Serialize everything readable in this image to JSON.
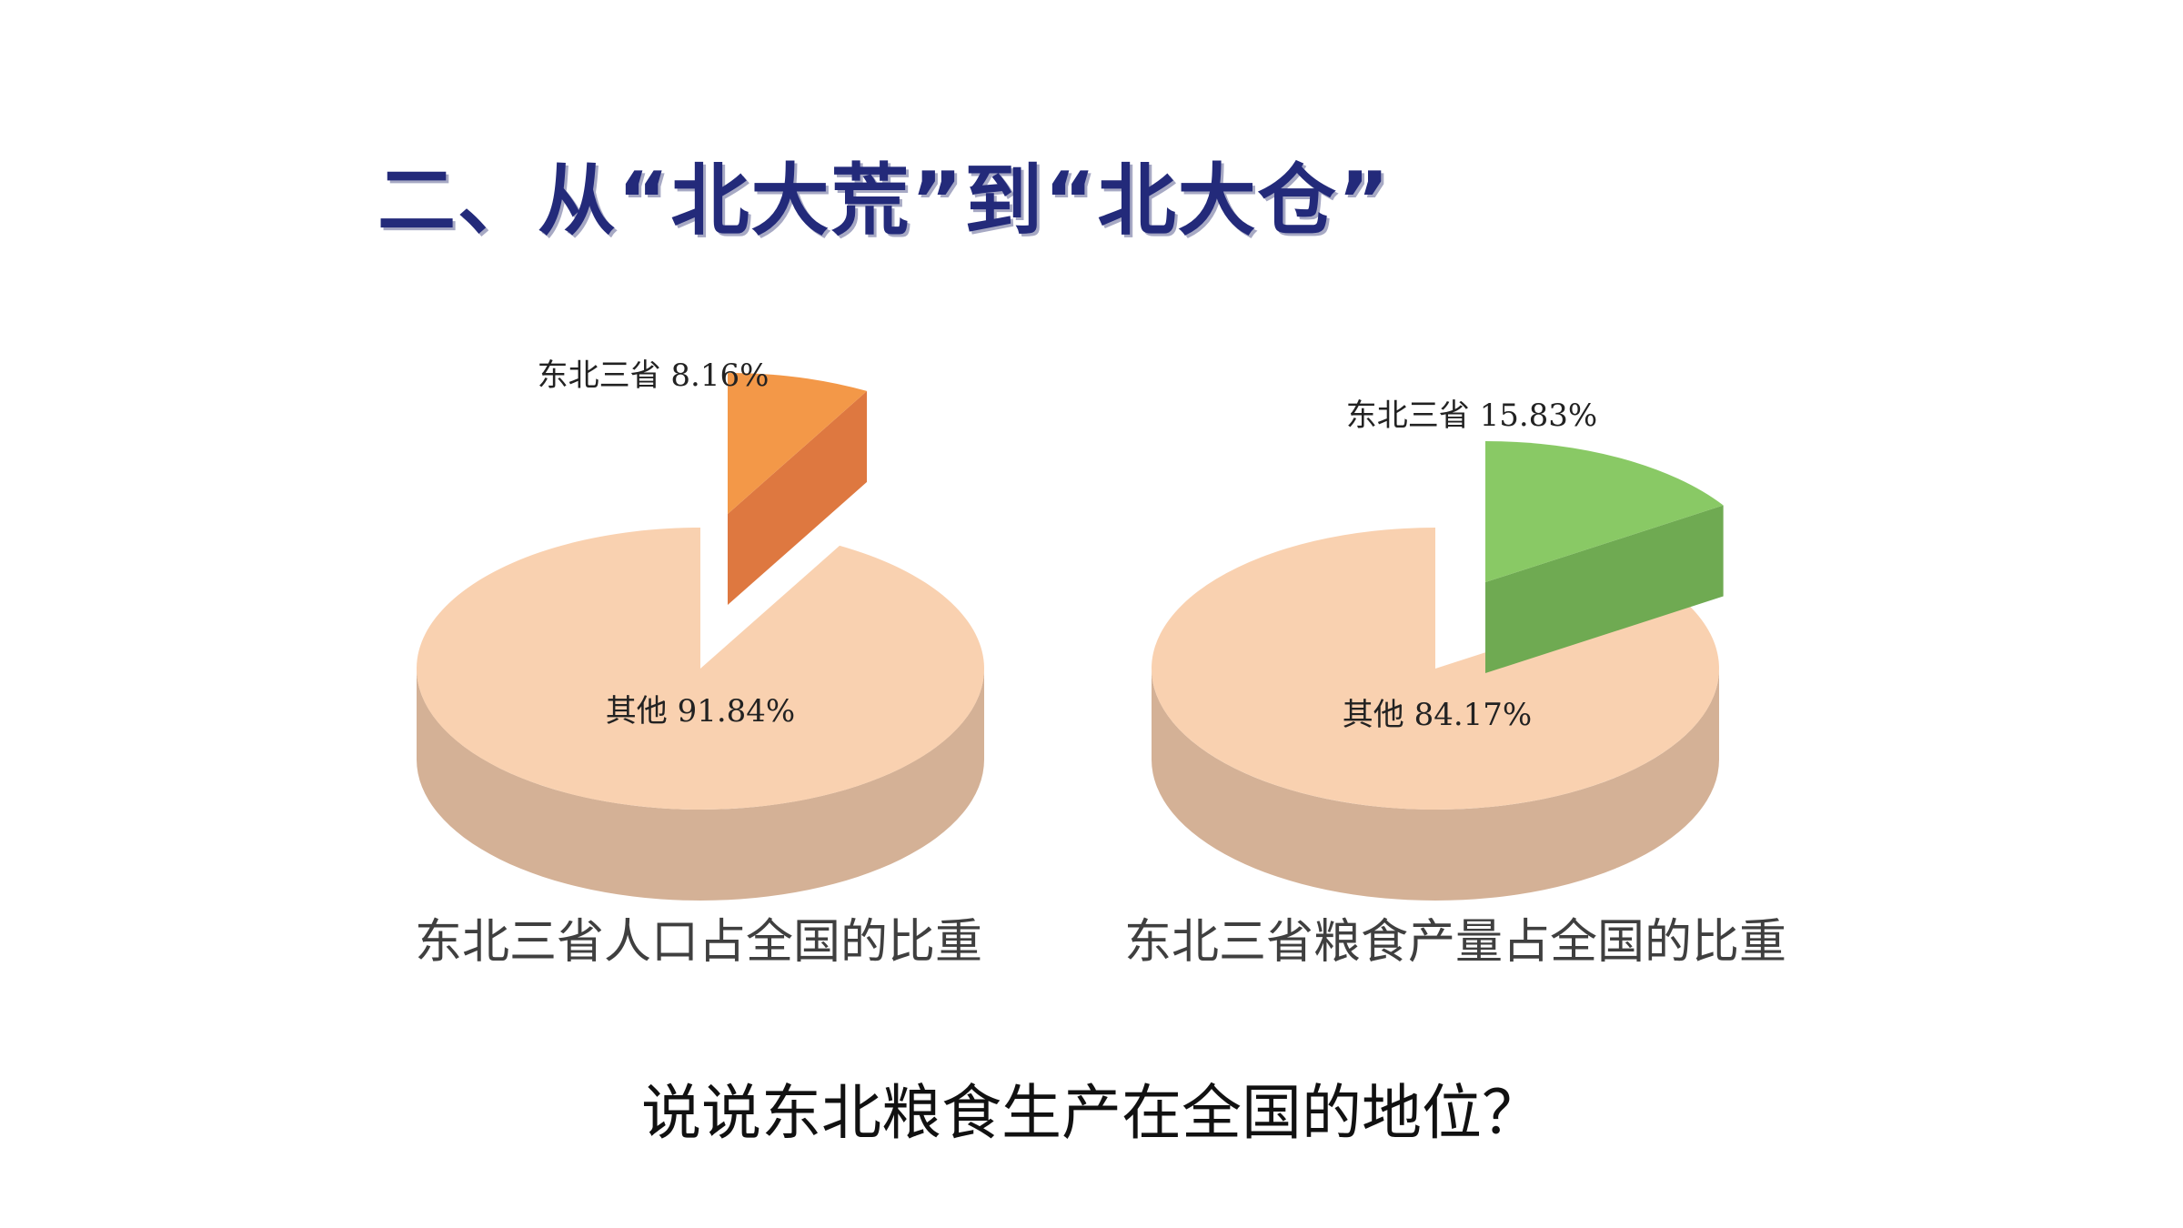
{
  "title": "二、从“北大荒”到“北大仓”",
  "question": "说说东北粮食生产在全国的地位？",
  "chart_data": [
    {
      "type": "pie",
      "title": "东北三省人口占全国的比重",
      "slices": [
        {
          "label": "东北三省",
          "value": 8.16,
          "value_text": "8.16%",
          "exploded": true,
          "color": "#f39848",
          "side_color": "#de7840"
        },
        {
          "label": "其他",
          "value": 91.84,
          "value_text": "91.84%",
          "exploded": false,
          "color": "#f9d1b0",
          "side_color": "#d4b196"
        }
      ]
    },
    {
      "type": "pie",
      "title": "东北三省粮食产量占全国的比重",
      "slices": [
        {
          "label": "东北三省",
          "value": 15.83,
          "value_text": "15.83%",
          "exploded": true,
          "color": "#89c965",
          "side_color": "#6faa52"
        },
        {
          "label": "其他",
          "value": 84.17,
          "value_text": "84.17%",
          "exploded": false,
          "color": "#f9d1b0",
          "side_color": "#d4b196"
        }
      ]
    }
  ]
}
